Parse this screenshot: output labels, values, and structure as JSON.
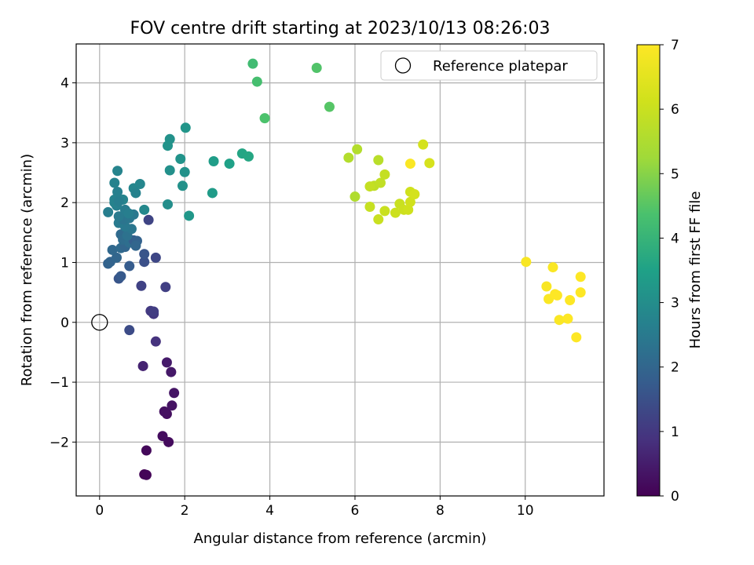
{
  "chart_data": {
    "type": "scatter",
    "title": "FOV centre drift starting at 2023/10/13 08:26:03",
    "xlabel": "Angular distance from reference (arcmin)",
    "ylabel": "Rotation from reference (arcmin)",
    "xlim": [
      -0.55,
      11.85
    ],
    "ylim": [
      -2.9,
      4.65
    ],
    "xticks": [
      0,
      2,
      4,
      6,
      8,
      10
    ],
    "yticks": [
      -2,
      -1,
      0,
      1,
      2,
      3,
      4
    ],
    "grid": true,
    "legend": {
      "placement": "top-right",
      "entries": [
        "Reference platepar"
      ]
    },
    "reference_point": {
      "name": "Reference platepar",
      "x": 0,
      "y": 0
    },
    "colorbar": {
      "label": "Hours from first FF file",
      "range": [
        0,
        7
      ],
      "ticks": [
        0,
        1,
        2,
        3,
        4,
        5,
        6,
        7
      ],
      "colormap": "viridis"
    },
    "points": [
      [
        1.05,
        -2.54,
        0.05
      ],
      [
        1.1,
        -2.55,
        0.08
      ],
      [
        1.1,
        -2.14,
        0.12
      ],
      [
        1.62,
        -2.0,
        0.18
      ],
      [
        1.48,
        -1.9,
        0.2
      ],
      [
        1.58,
        -1.53,
        0.25
      ],
      [
        1.52,
        -1.49,
        0.28
      ],
      [
        1.7,
        -1.39,
        0.32
      ],
      [
        1.75,
        -1.18,
        0.36
      ],
      [
        1.68,
        -0.83,
        0.42
      ],
      [
        1.58,
        -0.67,
        0.45
      ],
      [
        1.02,
        -0.73,
        0.6
      ],
      [
        1.32,
        -0.32,
        0.9
      ],
      [
        0.7,
        -0.13,
        1.4
      ],
      [
        1.27,
        0.14,
        1.0
      ],
      [
        1.2,
        0.19,
        1.05
      ],
      [
        1.27,
        0.18,
        1.1
      ],
      [
        1.55,
        0.59,
        1.15
      ],
      [
        0.98,
        0.61,
        1.2
      ],
      [
        0.45,
        0.73,
        1.6
      ],
      [
        0.5,
        0.77,
        1.7
      ],
      [
        0.7,
        0.94,
        1.75
      ],
      [
        1.32,
        1.08,
        1.3
      ],
      [
        1.05,
        1.01,
        1.5
      ],
      [
        1.05,
        1.14,
        1.6
      ],
      [
        1.15,
        1.71,
        1.25
      ],
      [
        0.2,
        0.98,
        1.9
      ],
      [
        0.25,
        1.01,
        1.95
      ],
      [
        0.4,
        1.08,
        2.0
      ],
      [
        0.3,
        1.21,
        2.05
      ],
      [
        0.5,
        1.24,
        2.1
      ],
      [
        0.6,
        1.26,
        2.0
      ],
      [
        0.5,
        1.47,
        2.1
      ],
      [
        0.55,
        1.38,
        2.15
      ],
      [
        0.7,
        1.33,
        2.2
      ],
      [
        0.8,
        1.37,
        1.8
      ],
      [
        0.88,
        1.36,
        1.9
      ],
      [
        0.85,
        1.28,
        2.0
      ],
      [
        0.65,
        1.45,
        2.3
      ],
      [
        0.75,
        1.56,
        2.4
      ],
      [
        0.6,
        1.6,
        2.45
      ],
      [
        0.45,
        1.66,
        2.5
      ],
      [
        0.55,
        1.72,
        2.35
      ],
      [
        0.45,
        1.77,
        2.5
      ],
      [
        0.7,
        1.74,
        2.4
      ],
      [
        0.8,
        1.8,
        2.45
      ],
      [
        0.6,
        1.88,
        2.55
      ],
      [
        0.68,
        1.82,
        2.6
      ],
      [
        0.2,
        1.84,
        2.6
      ],
      [
        0.4,
        1.95,
        2.65
      ],
      [
        0.35,
        2.0,
        2.7
      ],
      [
        0.35,
        2.05,
        2.7
      ],
      [
        0.55,
        2.05,
        2.75
      ],
      [
        0.45,
        2.02,
        2.6
      ],
      [
        0.42,
        2.18,
        2.65
      ],
      [
        0.35,
        2.33,
        2.7
      ],
      [
        0.42,
        2.53,
        2.75
      ],
      [
        0.8,
        2.24,
        2.8
      ],
      [
        0.85,
        2.16,
        2.7
      ],
      [
        0.95,
        2.31,
        2.8
      ],
      [
        1.05,
        1.88,
        2.85
      ],
      [
        1.6,
        1.97,
        3.0
      ],
      [
        1.65,
        2.54,
        3.05
      ],
      [
        1.95,
        2.28,
        3.1
      ],
      [
        2.0,
        2.51,
        3.1
      ],
      [
        1.9,
        2.73,
        3.15
      ],
      [
        1.65,
        3.06,
        3.1
      ],
      [
        1.6,
        2.95,
        3.15
      ],
      [
        2.02,
        3.25,
        3.2
      ],
      [
        2.1,
        1.78,
        3.25
      ],
      [
        2.65,
        2.16,
        3.35
      ],
      [
        2.68,
        2.69,
        3.4
      ],
      [
        3.05,
        2.65,
        3.5
      ],
      [
        3.35,
        2.82,
        3.6
      ],
      [
        3.5,
        2.77,
        3.65
      ],
      [
        3.6,
        4.32,
        4.2
      ],
      [
        3.7,
        4.02,
        4.3
      ],
      [
        3.88,
        3.41,
        4.4
      ],
      [
        5.1,
        4.25,
        4.45
      ],
      [
        5.4,
        3.6,
        4.5
      ],
      [
        5.85,
        2.75,
        5.6
      ],
      [
        6.05,
        2.89,
        5.6
      ],
      [
        6.0,
        2.1,
        5.55
      ],
      [
        6.55,
        2.71,
        5.7
      ],
      [
        6.45,
        2.28,
        5.8
      ],
      [
        6.6,
        2.33,
        5.85
      ],
      [
        6.7,
        2.47,
        5.9
      ],
      [
        6.35,
        2.27,
        5.9
      ],
      [
        6.35,
        1.93,
        5.95
      ],
      [
        6.55,
        1.72,
        6.0
      ],
      [
        6.7,
        1.86,
        6.0
      ],
      [
        6.95,
        1.83,
        6.05
      ],
      [
        7.05,
        1.98,
        6.0
      ],
      [
        7.15,
        1.88,
        6.05
      ],
      [
        7.25,
        1.88,
        6.1
      ],
      [
        7.3,
        2.18,
        6.1
      ],
      [
        7.3,
        2.01,
        6.15
      ],
      [
        7.4,
        2.14,
        6.2
      ],
      [
        7.6,
        2.97,
        6.2
      ],
      [
        7.75,
        2.66,
        6.25
      ],
      [
        7.3,
        2.65,
        6.95
      ],
      [
        10.02,
        1.01,
        6.9
      ],
      [
        10.5,
        0.6,
        6.9
      ],
      [
        10.55,
        0.39,
        6.95
      ],
      [
        10.65,
        0.92,
        6.95
      ],
      [
        10.75,
        0.45,
        7.0
      ],
      [
        10.7,
        0.47,
        7.0
      ],
      [
        10.8,
        0.04,
        6.95
      ],
      [
        11.05,
        0.37,
        7.0
      ],
      [
        11.0,
        0.06,
        7.0
      ],
      [
        11.2,
        -0.25,
        7.0
      ],
      [
        11.3,
        0.5,
        7.0
      ],
      [
        11.3,
        0.76,
        7.0
      ]
    ]
  }
}
